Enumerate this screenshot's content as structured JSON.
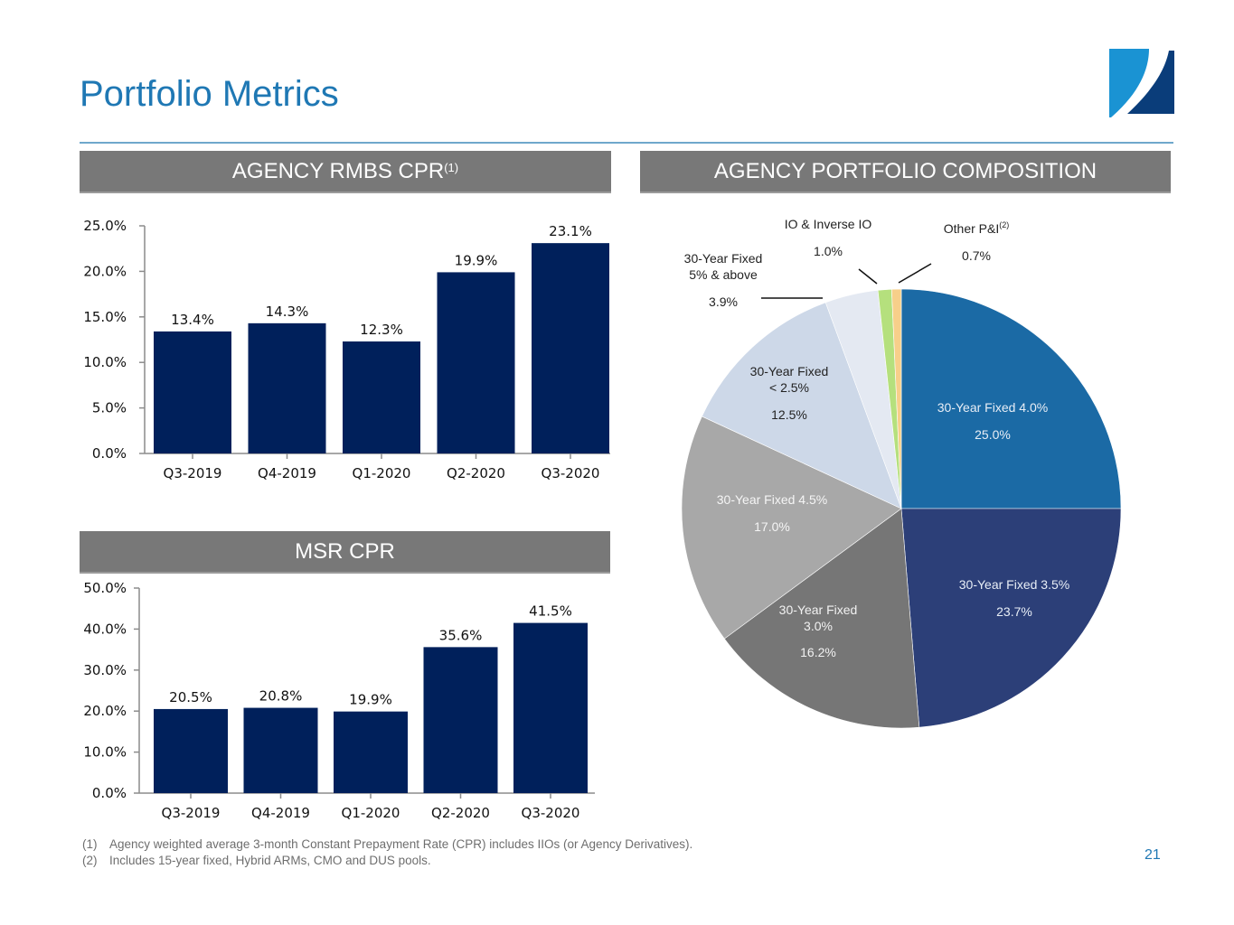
{
  "header": {
    "title": "Portfolio Metrics",
    "page_number": "21"
  },
  "colors": {
    "title": "#1f78b4",
    "bar": "#00205b",
    "section_bar": "#787878"
  },
  "sections": {
    "agency_rmbs_cpr": {
      "label": "AGENCY RMBS CPR",
      "footnote_ref": "(1)"
    },
    "msr_cpr": {
      "label": "MSR CPR"
    },
    "agency_portfolio": {
      "label": "AGENCY PORTFOLIO COMPOSITION"
    }
  },
  "chart_data": [
    {
      "type": "bar",
      "title": "AGENCY RMBS CPR",
      "categories": [
        "Q3-2019",
        "Q4-2019",
        "Q1-2020",
        "Q2-2020",
        "Q3-2020"
      ],
      "values": [
        13.4,
        14.3,
        12.3,
        19.9,
        23.1
      ],
      "value_labels": [
        "13.4%",
        "14.3%",
        "12.3%",
        "19.9%",
        "23.1%"
      ],
      "yticks": [
        "0.0%",
        "5.0%",
        "10.0%",
        "15.0%",
        "20.0%",
        "25.0%"
      ],
      "ylim": [
        0,
        25
      ],
      "ystep": 5,
      "xlabel": "",
      "ylabel": "",
      "grid": false,
      "color": "#00205b"
    },
    {
      "type": "bar",
      "title": "MSR CPR",
      "categories": [
        "Q3-2019",
        "Q4-2019",
        "Q1-2020",
        "Q2-2020",
        "Q3-2020"
      ],
      "values": [
        20.5,
        20.8,
        19.9,
        35.6,
        41.5
      ],
      "value_labels": [
        "20.5%",
        "20.8%",
        "19.9%",
        "35.6%",
        "41.5%"
      ],
      "yticks": [
        "0.0%",
        "10.0%",
        "20.0%",
        "30.0%",
        "40.0%",
        "50.0%"
      ],
      "ylim": [
        0,
        50
      ],
      "ystep": 10,
      "xlabel": "",
      "ylabel": "",
      "grid": false,
      "color": "#00205b"
    },
    {
      "type": "pie",
      "title": "AGENCY PORTFOLIO COMPOSITION",
      "start": "12 o'clock, clockwise",
      "slices": [
        {
          "label": "30-Year Fixed 4.0%",
          "label_lines": [
            "30-Year Fixed 4.0%"
          ],
          "value": 25.0,
          "value_label": "25.0%",
          "color": "#1b6aa5",
          "text_color": "#e8eef6",
          "label_position": "inside"
        },
        {
          "label": "30-Year Fixed 3.5%",
          "label_lines": [
            "30-Year Fixed 3.5%"
          ],
          "value": 23.7,
          "value_label": "23.7%",
          "color": "#2c3f78",
          "text_color": "#e8eef6",
          "label_position": "inside"
        },
        {
          "label": "30-Year Fixed 3.0%",
          "label_lines": [
            "30-Year Fixed",
            "3.0%"
          ],
          "value": 16.2,
          "value_label": "16.2%",
          "color": "#767676",
          "text_color": "#f2f2f2",
          "label_position": "inside"
        },
        {
          "label": "30-Year Fixed 4.5%",
          "label_lines": [
            "30-Year Fixed 4.5%"
          ],
          "value": 17.0,
          "value_label": "17.0%",
          "color": "#a8a8a8",
          "text_color": "#f5f5f5",
          "label_position": "inside"
        },
        {
          "label": "30-Year Fixed < 2.5%",
          "label_lines": [
            "30-Year Fixed",
            "< 2.5%"
          ],
          "value": 12.5,
          "value_label": "12.5%",
          "color": "#cdd8e8",
          "text_color": "#222222",
          "label_position": "inside"
        },
        {
          "label": "30-Year Fixed 5% & above",
          "label_lines": [
            "30-Year Fixed",
            "5% & above"
          ],
          "value": 3.9,
          "value_label": "3.9%",
          "color": "#e4e9f2",
          "text_color": "#222222",
          "label_position": "outside"
        },
        {
          "label": "IO & Inverse IO",
          "label_lines": [
            "IO & Inverse IO"
          ],
          "value": 1.0,
          "value_label": "1.0%",
          "color": "#b5e07d",
          "text_color": "#222222",
          "label_position": "outside"
        },
        {
          "label": "Other P&I",
          "label_lines": [
            "Other P&I"
          ],
          "footnote_ref": "(2)",
          "value": 0.7,
          "value_label": "0.7%",
          "color": "#f7cf8a",
          "text_color": "#222222",
          "label_position": "outside"
        }
      ]
    }
  ],
  "footnotes": [
    {
      "num": "(1)",
      "text": "Agency weighted average 3-month Constant Prepayment Rate (CPR) includes IIOs (or Agency Derivatives)."
    },
    {
      "num": "(2)",
      "text": "Includes 15-year fixed, Hybrid ARMs, CMO and DUS pools."
    }
  ]
}
